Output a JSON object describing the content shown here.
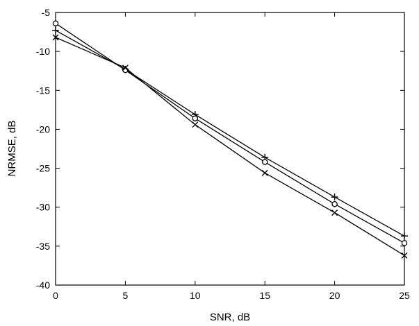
{
  "chart_data": {
    "type": "line",
    "xlabel": "SNR, dB",
    "ylabel": "NRMSE, dB",
    "xlim": [
      0,
      25
    ],
    "ylim": [
      -40,
      -5
    ],
    "x_ticks": [
      0,
      5,
      10,
      15,
      20,
      25
    ],
    "y_ticks": [
      -5,
      -10,
      -15,
      -20,
      -25,
      -30,
      -35,
      -40
    ],
    "grid": false,
    "x": [
      0,
      5,
      10,
      15,
      20,
      25
    ],
    "series": [
      {
        "marker": "plus",
        "values": [
          -7.3,
          -12.3,
          -18.1,
          -23.6,
          -28.7,
          -33.7
        ]
      },
      {
        "marker": "circle",
        "values": [
          -6.4,
          -12.4,
          -18.6,
          -24.2,
          -29.6,
          -34.6
        ]
      },
      {
        "marker": "cross",
        "values": [
          -8.2,
          -12.1,
          -19.4,
          -25.6,
          -30.7,
          -36.2
        ]
      }
    ]
  }
}
